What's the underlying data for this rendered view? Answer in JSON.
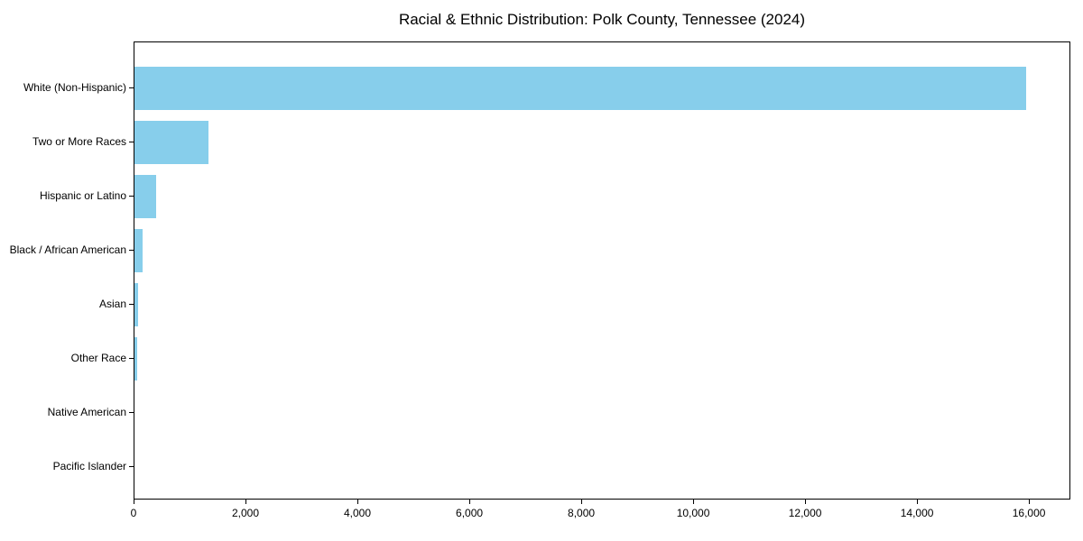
{
  "figure": {
    "background": "#ffffff",
    "text_color": "#000000",
    "spine_color": "#000000"
  },
  "chart_data": {
    "type": "bar",
    "orientation": "horizontal",
    "title": "Racial & Ethnic Distribution: Polk County, Tennessee (2024)",
    "categories": [
      "White (Non-Hispanic)",
      "Two or More Races",
      "Hispanic or Latino",
      "Black / African American",
      "Asian",
      "Other Race",
      "Native American",
      "Pacific Islander"
    ],
    "values": [
      15930,
      1330,
      380,
      150,
      70,
      55,
      0,
      0
    ],
    "xlabel": "",
    "ylabel": "",
    "xlim": [
      0,
      16740
    ],
    "xticks": [
      0,
      2000,
      4000,
      6000,
      8000,
      10000,
      12000,
      14000,
      16000
    ],
    "xtick_labels": [
      "0",
      "2,000",
      "4,000",
      "6,000",
      "8,000",
      "10,000",
      "12,000",
      "14,000",
      "16,000"
    ],
    "bar_color": "#87CEEB",
    "grid": false,
    "legend": null
  }
}
